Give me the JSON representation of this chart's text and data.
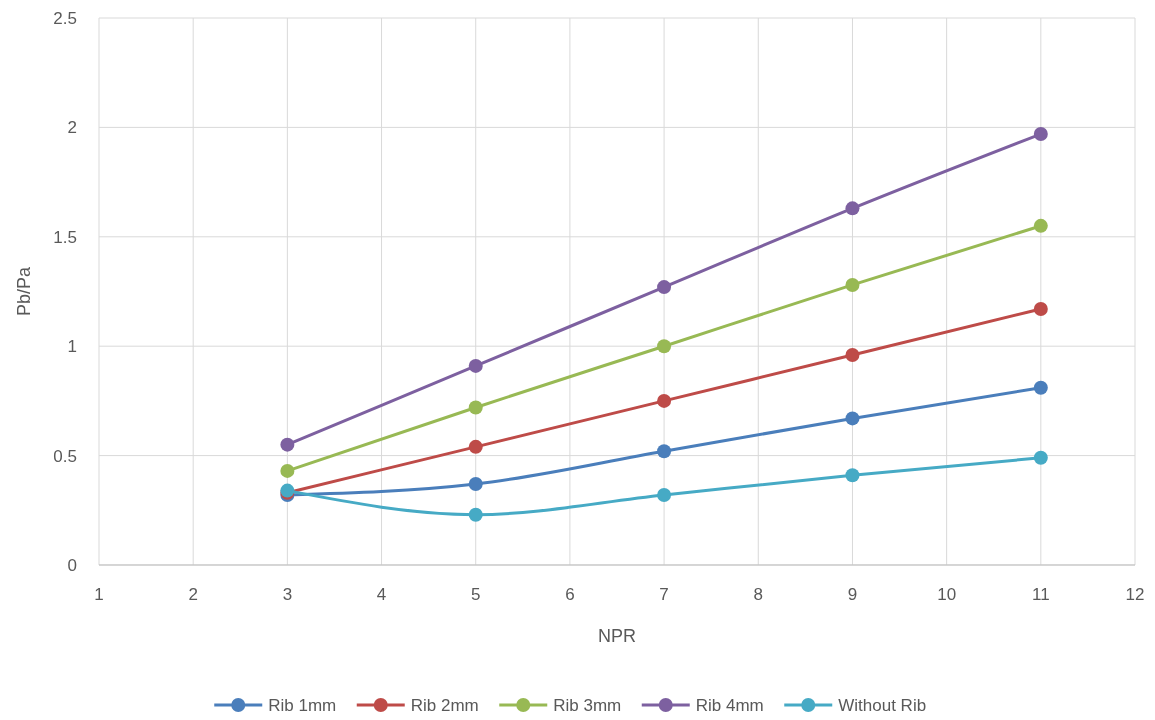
{
  "chart_data": {
    "type": "line",
    "xlabel": "NPR",
    "ylabel": "Pb/Pa",
    "x": [
      3,
      5,
      7,
      9,
      11
    ],
    "xlim": [
      1,
      12
    ],
    "xticks": [
      1,
      2,
      3,
      4,
      5,
      6,
      7,
      8,
      9,
      10,
      11,
      12
    ],
    "ylim": [
      0,
      2.5
    ],
    "yticks": [
      0,
      0.5,
      1,
      1.5,
      2,
      2.5
    ],
    "grid": true,
    "legend": "bottom",
    "marker": "circle",
    "line_style": "solid",
    "series": [
      {
        "name": "Rib 1mm",
        "color": "#4a7ebb",
        "values": [
          0.32,
          0.37,
          0.52,
          0.67,
          0.81
        ]
      },
      {
        "name": "Rib 2mm",
        "color": "#be4b48",
        "values": [
          0.33,
          0.54,
          0.75,
          0.96,
          1.17
        ]
      },
      {
        "name": "Rib 3mm",
        "color": "#98b954",
        "values": [
          0.43,
          0.72,
          1.0,
          1.28,
          1.55
        ]
      },
      {
        "name": "Rib 4mm",
        "color": "#7d60a0",
        "values": [
          0.55,
          0.91,
          1.27,
          1.63,
          1.97
        ]
      },
      {
        "name": "Without Rib",
        "color": "#46aac5",
        "values": [
          0.34,
          0.23,
          0.32,
          0.41,
          0.49
        ]
      }
    ]
  }
}
